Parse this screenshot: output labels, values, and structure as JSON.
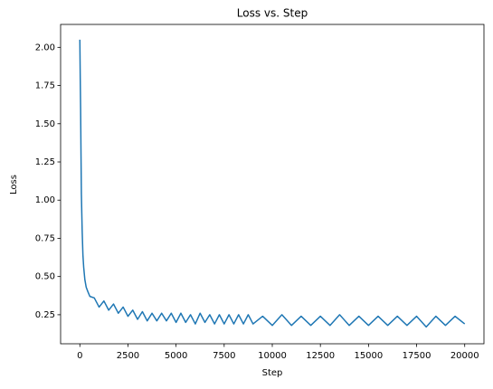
{
  "chart_data": {
    "type": "line",
    "title": "Loss vs. Step",
    "xlabel": "Step",
    "ylabel": "Loss",
    "color": "#1f77b4",
    "x": [
      0,
      20,
      40,
      60,
      80,
      120,
      160,
      200,
      260,
      330,
      420,
      520,
      750,
      1000,
      1250,
      1500,
      1750,
      2000,
      2250,
      2500,
      2750,
      3000,
      3250,
      3500,
      3750,
      4000,
      4250,
      4500,
      4750,
      5000,
      5250,
      5500,
      5750,
      6000,
      6250,
      6500,
      6750,
      7000,
      7250,
      7500,
      7750,
      8000,
      8250,
      8500,
      8750,
      9000,
      9500,
      10000,
      10500,
      11000,
      11500,
      12000,
      12500,
      13000,
      13500,
      14000,
      14500,
      15000,
      15500,
      16000,
      16500,
      17000,
      17500,
      18000,
      18500,
      19000,
      19500,
      20000
    ],
    "values": [
      2.05,
      1.8,
      1.6,
      1.3,
      1.04,
      0.8,
      0.64,
      0.56,
      0.48,
      0.43,
      0.4,
      0.37,
      0.36,
      0.3,
      0.34,
      0.28,
      0.32,
      0.26,
      0.3,
      0.24,
      0.28,
      0.22,
      0.27,
      0.21,
      0.26,
      0.21,
      0.26,
      0.21,
      0.26,
      0.2,
      0.26,
      0.2,
      0.25,
      0.19,
      0.26,
      0.2,
      0.25,
      0.19,
      0.25,
      0.19,
      0.25,
      0.19,
      0.25,
      0.19,
      0.25,
      0.19,
      0.24,
      0.18,
      0.25,
      0.18,
      0.24,
      0.18,
      0.24,
      0.18,
      0.25,
      0.18,
      0.24,
      0.18,
      0.24,
      0.18,
      0.24,
      0.18,
      0.24,
      0.17,
      0.24,
      0.18,
      0.24,
      0.19
    ],
    "xlim": [
      -1000,
      21000
    ],
    "ylim": [
      0.06,
      2.15
    ],
    "xticks": [
      0,
      2500,
      5000,
      7500,
      10000,
      12500,
      15000,
      17500,
      20000
    ],
    "yticks": [
      0.25,
      {
        "value": 0.5,
        "label": "0.50"
      },
      0.75,
      {
        "value": 1,
        "label": "1.00"
      },
      1.25,
      {
        "value": 1.5,
        "label": "1.50"
      },
      1.75,
      {
        "value": 2,
        "label": "2.00"
      }
    ]
  }
}
